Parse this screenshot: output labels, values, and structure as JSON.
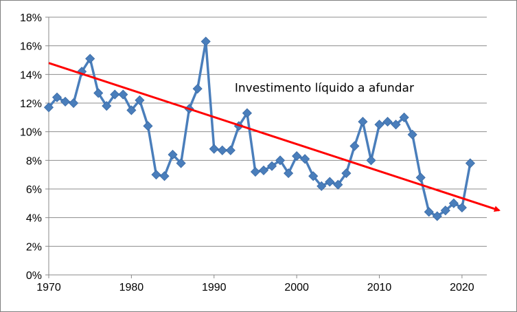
{
  "chart_data": {
    "type": "line",
    "title": "",
    "xlabel": "",
    "ylabel": "",
    "xlim": [
      1970,
      2023
    ],
    "ylim": [
      0,
      18
    ],
    "x_ticks": [
      1970,
      1980,
      1990,
      2000,
      2010,
      2020
    ],
    "x_tick_labels": [
      "1970",
      "1980",
      "1990",
      "2000",
      "2010",
      "2020"
    ],
    "y_ticks": [
      0,
      2,
      4,
      6,
      8,
      10,
      12,
      14,
      16,
      18
    ],
    "y_tick_labels": [
      "0%",
      "2%",
      "4%",
      "6%",
      "8%",
      "10%",
      "12%",
      "14%",
      "16%",
      "18%"
    ],
    "grid": "horizontal",
    "legend": "none",
    "series": [
      {
        "color": "#4a7ebb",
        "marker": "diamond",
        "x": [
          1970,
          1971,
          1972,
          1973,
          1974,
          1975,
          1976,
          1977,
          1978,
          1979,
          1980,
          1981,
          1982,
          1983,
          1984,
          1985,
          1986,
          1987,
          1988,
          1989,
          1990,
          1991,
          1992,
          1993,
          1994,
          1995,
          1996,
          1997,
          1998,
          1999,
          2000,
          2001,
          2002,
          2003,
          2004,
          2005,
          2006,
          2007,
          2008,
          2009,
          2010,
          2011,
          2012,
          2013,
          2014,
          2015,
          2016,
          2017,
          2018,
          2019,
          2020,
          2021
        ],
        "y": [
          11.7,
          12.4,
          12.1,
          12.0,
          14.2,
          15.1,
          12.7,
          11.8,
          12.6,
          12.6,
          11.5,
          12.2,
          10.4,
          7.0,
          6.9,
          8.4,
          7.8,
          11.6,
          13.0,
          16.3,
          8.8,
          8.7,
          8.7,
          10.4,
          11.3,
          7.2,
          7.3,
          7.6,
          8.0,
          7.1,
          8.3,
          8.1,
          6.9,
          6.2,
          6.5,
          6.3,
          7.1,
          9.0,
          10.7,
          8.0,
          10.5,
          10.7,
          10.5,
          11.0,
          9.8,
          6.8,
          4.4,
          4.1,
          4.5,
          5.0,
          4.7,
          7.8
        ]
      }
    ],
    "trend_line": {
      "color": "#ff0000",
      "start": {
        "x": 1970,
        "y": 14.8
      },
      "end": {
        "x": 2023,
        "y": 4.7
      },
      "arrow": "end"
    },
    "annotations": [
      {
        "text": "Investimento líquido a afundar",
        "x": 1992.5,
        "y": 12.8
      }
    ]
  }
}
